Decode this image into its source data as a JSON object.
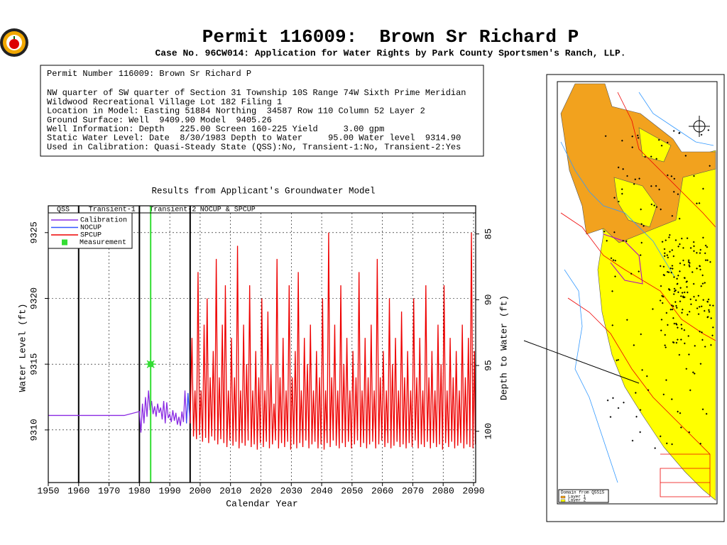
{
  "header": {
    "title": "Permit 116009:  Brown Sr Richard P",
    "subtitle": "Case No. 96CW014: Application for Water Rights by Park County Sportsmen's Ranch, LLP."
  },
  "info": {
    "lines": [
      "Permit Number 116009: Brown Sr Richard P",
      "NW quarter of SW quarter of Section 31 Township 10S Range 74W Sixth Prime Meridian",
      "Wildwood Recreational Village Lot 182 Filing 1",
      "Location in Model: Easting 51884 Northing  34587 Row 110 Column 52 Layer 2",
      "Ground Surface: Well  9409.90 Model  9405.26",
      "Well Information: Depth   225.00 Screen 160-225 Yield     3.00 gpm",
      "Static Water Level: Date  8/30/1983 Depth to Water     95.00 Water level  9314.90",
      "Used in Calibration: Quasi-Steady State (QSS):No, Transient-1:No, Transient-2:Yes"
    ]
  },
  "chart_data": {
    "type": "line",
    "title": "Results from Applicant's Groundwater Model",
    "x_label": "Calendar Year",
    "y_label": "Water Level (ft)",
    "y2_label": "Depth to Water (ft)",
    "xlim": [
      1950,
      2090.7
    ],
    "xticks": [
      1950,
      1960,
      1970,
      1980,
      1990,
      2000,
      2010,
      2020,
      2030,
      2040,
      2050,
      2060,
      2070,
      2080,
      2090
    ],
    "ylim": [
      9306,
      9326.5
    ],
    "yticks": [
      9310,
      9315,
      9320,
      9325
    ],
    "y2lim": [
      83.4,
      103.9
    ],
    "y2ticks": [
      85,
      90,
      95,
      100
    ],
    "y2_inverted": true,
    "grid": true,
    "periods": [
      {
        "label": "QSS",
        "start": 1950,
        "end": 1960
      },
      {
        "label": "Transient-1",
        "start": 1960,
        "end": 1980
      },
      {
        "label": "Transient-2",
        "start": 1980,
        "end": 1996.7
      },
      {
        "label": "NOCUP & SPCUP",
        "start": 1996.7,
        "end": 2090.7
      }
    ],
    "series": [
      {
        "name": "Calibration",
        "color": "#8a2be2",
        "x": [
          1950,
          1975,
          1980,
          1980.5,
          1981,
          1981.5,
          1982,
          1982.5,
          1983,
          1983.5,
          1984,
          1984.5,
          1985,
          1985.5,
          1986,
          1986.5,
          1987,
          1987.5,
          1988,
          1988.5,
          1989,
          1989.5,
          1990,
          1990.5,
          1991,
          1991.5,
          1992,
          1992.5,
          1993,
          1993.5,
          1994,
          1994.5,
          1995,
          1995.5,
          1996
        ],
        "values": [
          9311.1,
          9311.1,
          9311.4,
          9309.8,
          9312.0,
          9310.5,
          9312.5,
          9311.0,
          9313.0,
          9311.5,
          9312.2,
          9311.2,
          9311.8,
          9311.0,
          9312.0,
          9311.3,
          9311.7,
          9310.8,
          9312.2,
          9310.5,
          9312.1,
          9310.9,
          9311.2,
          9310.6,
          9311.5,
          9310.7,
          9311.3,
          9310.4,
          9311.0,
          9310.3,
          9311.4,
          9310.6,
          9313.0,
          9310.5,
          9312.8
        ]
      },
      {
        "name": "NOCUP",
        "color": "#3355ff",
        "x": [
          1995.5,
          1996,
          1996.7
        ],
        "values": [
          9310.5,
          9312.8,
          9310.5
        ]
      },
      {
        "name": "SPCUP",
        "color": "#ee0000",
        "x": [
          1996.7,
          1997.3,
          1997.8,
          1998.3,
          1998.8,
          1999.3,
          1999.8,
          2000.3,
          2000.8,
          2001.3,
          2001.8,
          2002.3,
          2002.8,
          2003.3,
          2003.8,
          2004.3,
          2004.8,
          2005.3,
          2005.8,
          2006.3,
          2006.8,
          2007.3,
          2007.8,
          2008.3,
          2008.8,
          2009.3,
          2009.8,
          2010.3,
          2010.8,
          2011.3,
          2011.8,
          2012.3,
          2012.8,
          2013.3,
          2013.8,
          2014.3,
          2014.8,
          2015.3,
          2015.8,
          2016.3,
          2016.8,
          2017.3,
          2017.8,
          2018.3,
          2018.8,
          2019.3,
          2019.8,
          2020.3,
          2020.8,
          2021.3,
          2021.8,
          2022.3,
          2022.8,
          2023.3,
          2023.8,
          2024.3,
          2024.8,
          2025.3,
          2025.8,
          2026.3,
          2026.8,
          2027.3,
          2027.8,
          2028.3,
          2028.8,
          2029.3,
          2029.8,
          2030.3,
          2030.8,
          2031.3,
          2031.8,
          2032.3,
          2032.8,
          2033.3,
          2033.8,
          2034.3,
          2034.8,
          2035.3,
          2035.8,
          2036.3,
          2036.8,
          2037.3,
          2037.8,
          2038.3,
          2038.8,
          2039.3,
          2039.8,
          2040.3,
          2040.8,
          2041.3,
          2041.8,
          2042.3,
          2042.8,
          2043.3,
          2043.8,
          2044.3,
          2044.8,
          2045.3,
          2045.8,
          2046.3,
          2046.8,
          2047.3,
          2047.8,
          2048.3,
          2048.8,
          2049.3,
          2049.8,
          2050.3,
          2050.8,
          2051.3,
          2051.8,
          2052.3,
          2052.8,
          2053.3,
          2053.8,
          2054.3,
          2054.8,
          2055.3,
          2055.8,
          2056.3,
          2056.8,
          2057.3,
          2057.8,
          2058.3,
          2058.8,
          2059.3,
          2059.8,
          2060.3,
          2060.8,
          2061.3,
          2061.8,
          2062.3,
          2062.8,
          2063.3,
          2063.8,
          2064.3,
          2064.8,
          2065.3,
          2065.8,
          2066.3,
          2066.8,
          2067.3,
          2067.8,
          2068.3,
          2068.8,
          2069.3,
          2069.8,
          2070.3,
          2070.8,
          2071.3,
          2071.8,
          2072.3,
          2072.8,
          2073.3,
          2073.8,
          2074.3,
          2074.8,
          2075.3,
          2075.8,
          2076.3,
          2076.8,
          2077.3,
          2077.8,
          2078.3,
          2078.8,
          2079.3,
          2079.8,
          2080.3,
          2080.8,
          2081.3,
          2081.8,
          2082.3,
          2082.8,
          2083.3,
          2083.8,
          2084.3,
          2084.8,
          2085.3,
          2085.8,
          2086.3,
          2086.8,
          2087.3,
          2087.8,
          2088.3,
          2088.8,
          2089.3,
          2089.8,
          2090.3,
          2090.6
        ],
        "values": [
          9310.5,
          9317,
          9309.5,
          9313,
          9309.3,
          9322,
          9309.6,
          9313,
          9309.1,
          9318,
          9309.4,
          9320,
          9309.0,
          9314,
          9309.5,
          9316,
          9309.2,
          9323,
          9308.9,
          9314,
          9309.3,
          9318,
          9309.0,
          9321,
          9308.7,
          9313,
          9309.2,
          9317,
          9308.8,
          9314,
          9309.1,
          9324,
          9308.6,
          9313,
          9309.0,
          9318,
          9308.8,
          9315,
          9309.2,
          9321,
          9308.7,
          9313,
          9308.9,
          9316,
          9308.5,
          9314,
          9309.0,
          9320,
          9308.7,
          9313,
          9309.1,
          9319,
          9308.6,
          9315,
          9308.9,
          9312,
          9309.2,
          9323,
          9308.6,
          9314,
          9309.0,
          9317,
          9308.7,
          9313,
          9309.1,
          9321,
          9308.5,
          9314,
          9308.9,
          9316,
          9308.6,
          9322,
          9309.0,
          9313,
          9308.7,
          9317,
          9309.2,
          9315,
          9308.6,
          9318,
          9308.9,
          9313,
          9309.1,
          9316,
          9308.6,
          9314,
          9308.9,
          9320,
          9308.5,
          9313,
          9309.0,
          9325,
          9308.7,
          9314,
          9309.2,
          9318,
          9308.8,
          9313,
          9308.6,
          9321,
          9309.0,
          9315,
          9308.7,
          9317,
          9309.1,
          9313,
          9308.6,
          9316,
          9308.9,
          9314,
          9309.2,
          9322,
          9308.7,
          9313,
          9309.0,
          9317,
          9308.6,
          9314,
          9308.9,
          9318,
          9309.1,
          9313,
          9308.6,
          9323,
          9308.9,
          9314,
          9309.2,
          9316,
          9308.7,
          9313,
          9309.0,
          9320,
          9308.6,
          9315,
          9308.8,
          9317,
          9309.1,
          9313,
          9308.7,
          9319,
          9308.9,
          9314,
          9308.6,
          9316,
          9309.0,
          9313,
          9308.7,
          9320,
          9309.2,
          9314,
          9308.6,
          9317,
          9308.9,
          9313,
          9308.7,
          9321,
          9309.1,
          9314,
          9308.6,
          9316,
          9309.0,
          9313,
          9308.7,
          9318,
          9308.9,
          9315,
          9308.5,
          9321,
          9309.0,
          9313,
          9308.7,
          9317,
          9309.1,
          9314,
          9308.6,
          9316,
          9308.8,
          9313,
          9309.0,
          9318,
          9308.6,
          9314,
          9308.9,
          9317,
          9308.7,
          9325,
          9308.6,
          9316,
          9308.9
        ]
      },
      {
        "name": "Measurement",
        "color": "#33dd33",
        "marker": true,
        "x": [
          1983.7
        ],
        "values": [
          9315
        ]
      }
    ]
  },
  "map": {
    "legend_title": "Domain from QSS1S",
    "legend": [
      "Layer 1",
      "Layer 2"
    ]
  }
}
